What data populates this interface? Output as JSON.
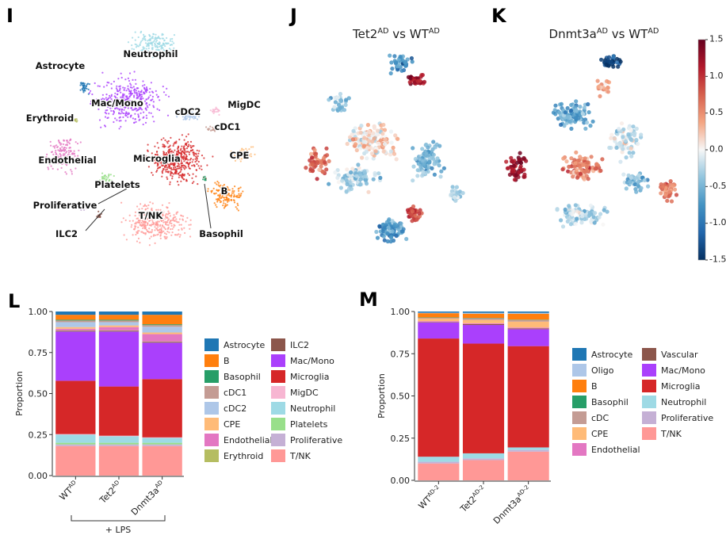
{
  "chart_data": [
    {
      "type": "umap",
      "panel": "I",
      "clusters": [
        {
          "name": "Neutrophil",
          "color": "#9edae5"
        },
        {
          "name": "Astrocyte",
          "color": "#1f77b4"
        },
        {
          "name": "Mac/Mono",
          "color": "#aa40fc"
        },
        {
          "name": "cDC2",
          "color": "#aec7e8"
        },
        {
          "name": "MigDC",
          "color": "#f7b6d2"
        },
        {
          "name": "Erythroid",
          "color": "#b5bd61"
        },
        {
          "name": "cDC1",
          "color": "#c49c94"
        },
        {
          "name": "Endothelial",
          "color": "#e377c2"
        },
        {
          "name": "Microglia",
          "color": "#d62728"
        },
        {
          "name": "CPE",
          "color": "#ffbb78"
        },
        {
          "name": "Platelets",
          "color": "#98df8a"
        },
        {
          "name": "B",
          "color": "#ff7f0e"
        },
        {
          "name": "Proliferative",
          "color": "#c5b0d5"
        },
        {
          "name": "T/NK",
          "color": "#ff9896"
        },
        {
          "name": "ILC2",
          "color": "#8c564b"
        },
        {
          "name": "Basophil",
          "color": "#279e68"
        }
      ]
    },
    {
      "type": "diffmap",
      "panel": "J",
      "title": [
        "Tet2",
        "AD",
        " vs WT",
        "AD"
      ],
      "colormap": [
        "#053061",
        "#2166ac",
        "#4393c3",
        "#92c5de",
        "#f7f7f7",
        "#f4a582",
        "#d6604d",
        "#b2182b",
        "#67001f"
      ]
    },
    {
      "type": "diffmap",
      "panel": "K",
      "title": [
        "Dnmt3a",
        "AD",
        " vs WT",
        "AD"
      ],
      "colormap": [
        "#053061",
        "#2166ac",
        "#4393c3",
        "#92c5de",
        "#f7f7f7",
        "#f4a582",
        "#d6604d",
        "#b2182b",
        "#67001f"
      ],
      "colorbar_lim": [
        -1.5,
        1.5
      ],
      "colorbar_ticks": [
        1.5,
        {
          "value": 1,
          "label": "1.0"
        },
        0.5,
        {
          "value": 0,
          "label": "0.0"
        },
        -0.5,
        {
          "value": -1,
          "label": "-1.0"
        },
        -1.5
      ]
    },
    {
      "type": "stacked-bar",
      "panel": "L",
      "ylabel": "Proportion",
      "annotation": "+ LPS",
      "categories": [
        [
          "WT",
          "AD"
        ],
        [
          "Tet2",
          "AD"
        ],
        [
          "Dnmt3a",
          "AD"
        ]
      ],
      "ylim": [
        0,
        1
      ],
      "yticks": [
        {
          "value": 0,
          "label": "0.00"
        },
        {
          "value": 0.25,
          "label": "0.25"
        },
        {
          "value": 0.5,
          "label": "0.50"
        },
        {
          "value": 0.75,
          "label": "0.75"
        },
        {
          "value": 1,
          "label": "1.00"
        }
      ],
      "series": [
        {
          "name": "Astrocyte",
          "color": "#1f77b4",
          "values": [
            0.02,
            0.02,
            0.02
          ]
        },
        {
          "name": "B",
          "color": "#ff7f0e",
          "values": [
            0.03,
            0.03,
            0.058
          ]
        },
        {
          "name": "Basophil",
          "color": "#279e68",
          "values": [
            0.005,
            0.005,
            0.005
          ]
        },
        {
          "name": "cDC1",
          "color": "#c49c94",
          "values": [
            0.01,
            0.01,
            0.01
          ]
        },
        {
          "name": "cDC2",
          "color": "#aec7e8",
          "values": [
            0.03,
            0.02,
            0.035
          ]
        },
        {
          "name": "CPE",
          "color": "#ffbb78",
          "values": [
            0.01,
            0.01,
            0.01
          ]
        },
        {
          "name": "Endothelial",
          "color": "#e377c2",
          "values": [
            0.01,
            0.02,
            0.045
          ]
        },
        {
          "name": "Erythroid",
          "color": "#b5bd61",
          "values": [
            0.002,
            0.002,
            0.002
          ]
        },
        {
          "name": "ILC2",
          "color": "#8c564b",
          "values": [
            0.005,
            0.005,
            0.005
          ]
        },
        {
          "name": "Mac/Mono",
          "color": "#aa40fc",
          "values": [
            0.3,
            0.335,
            0.222
          ]
        },
        {
          "name": "Microglia",
          "color": "#d62728",
          "values": [
            0.325,
            0.3,
            0.355
          ]
        },
        {
          "name": "MigDC",
          "color": "#f7b6d2",
          "values": [
            0.003,
            0.003,
            0.003
          ]
        },
        {
          "name": "Neutrophil",
          "color": "#9edae5",
          "values": [
            0.05,
            0.04,
            0.03
          ]
        },
        {
          "name": "Platelets",
          "color": "#98df8a",
          "values": [
            0.01,
            0.01,
            0.01
          ]
        },
        {
          "name": "Proliferative",
          "color": "#c5b0d5",
          "values": [
            0.01,
            0.01,
            0.01
          ]
        },
        {
          "name": "T/NK",
          "color": "#ff9896",
          "values": [
            0.18,
            0.18,
            0.18
          ]
        }
      ]
    },
    {
      "type": "stacked-bar",
      "panel": "M",
      "ylabel": "Proportion",
      "categories": [
        [
          "WT",
          "AD-2"
        ],
        [
          "Tet2",
          "AD-2"
        ],
        [
          "Dnmt3a",
          "AD-2"
        ]
      ],
      "ylim": [
        0,
        1
      ],
      "yticks": [
        {
          "value": 0,
          "label": "0.00"
        },
        {
          "value": 0.25,
          "label": "0.25"
        },
        {
          "value": 0.5,
          "label": "0.50"
        },
        {
          "value": 0.75,
          "label": "0.75"
        },
        {
          "value": 1,
          "label": "1.00"
        }
      ],
      "series": [
        {
          "name": "Astrocyte",
          "color": "#1f77b4",
          "values": [
            0.007,
            0.008,
            0.008
          ]
        },
        {
          "name": "Oligo",
          "color": "#aec7e8",
          "values": [
            0.003,
            0.005,
            0.005
          ]
        },
        {
          "name": "B",
          "color": "#ff7f0e",
          "values": [
            0.025,
            0.025,
            0.035
          ]
        },
        {
          "name": "Basophil",
          "color": "#279e68",
          "values": [
            0.002,
            0.002,
            0.002
          ]
        },
        {
          "name": "cDC",
          "color": "#c49c94",
          "values": [
            0.005,
            0.01,
            0.01
          ]
        },
        {
          "name": "CPE",
          "color": "#ffbb78",
          "values": [
            0.015,
            0.02,
            0.035
          ]
        },
        {
          "name": "Endothelial",
          "color": "#e377c2",
          "values": [
            0.005,
            0.005,
            0.005
          ]
        },
        {
          "name": "Vascular",
          "color": "#8c564b",
          "values": [
            0.003,
            0.005,
            0.005
          ]
        },
        {
          "name": "Mac/Mono",
          "color": "#aa40fc",
          "values": [
            0.095,
            0.11,
            0.1
          ]
        },
        {
          "name": "Microglia",
          "color": "#d62728",
          "values": [
            0.7,
            0.65,
            0.6
          ]
        },
        {
          "name": "Neutrophil",
          "color": "#9edae5",
          "values": [
            0.03,
            0.03,
            0.015
          ]
        },
        {
          "name": "Proliferative",
          "color": "#c5b0d5",
          "values": [
            0.01,
            0.01,
            0.01
          ]
        },
        {
          "name": "T/NK",
          "color": "#ff9896",
          "values": [
            0.1,
            0.12,
            0.17
          ]
        }
      ]
    }
  ]
}
